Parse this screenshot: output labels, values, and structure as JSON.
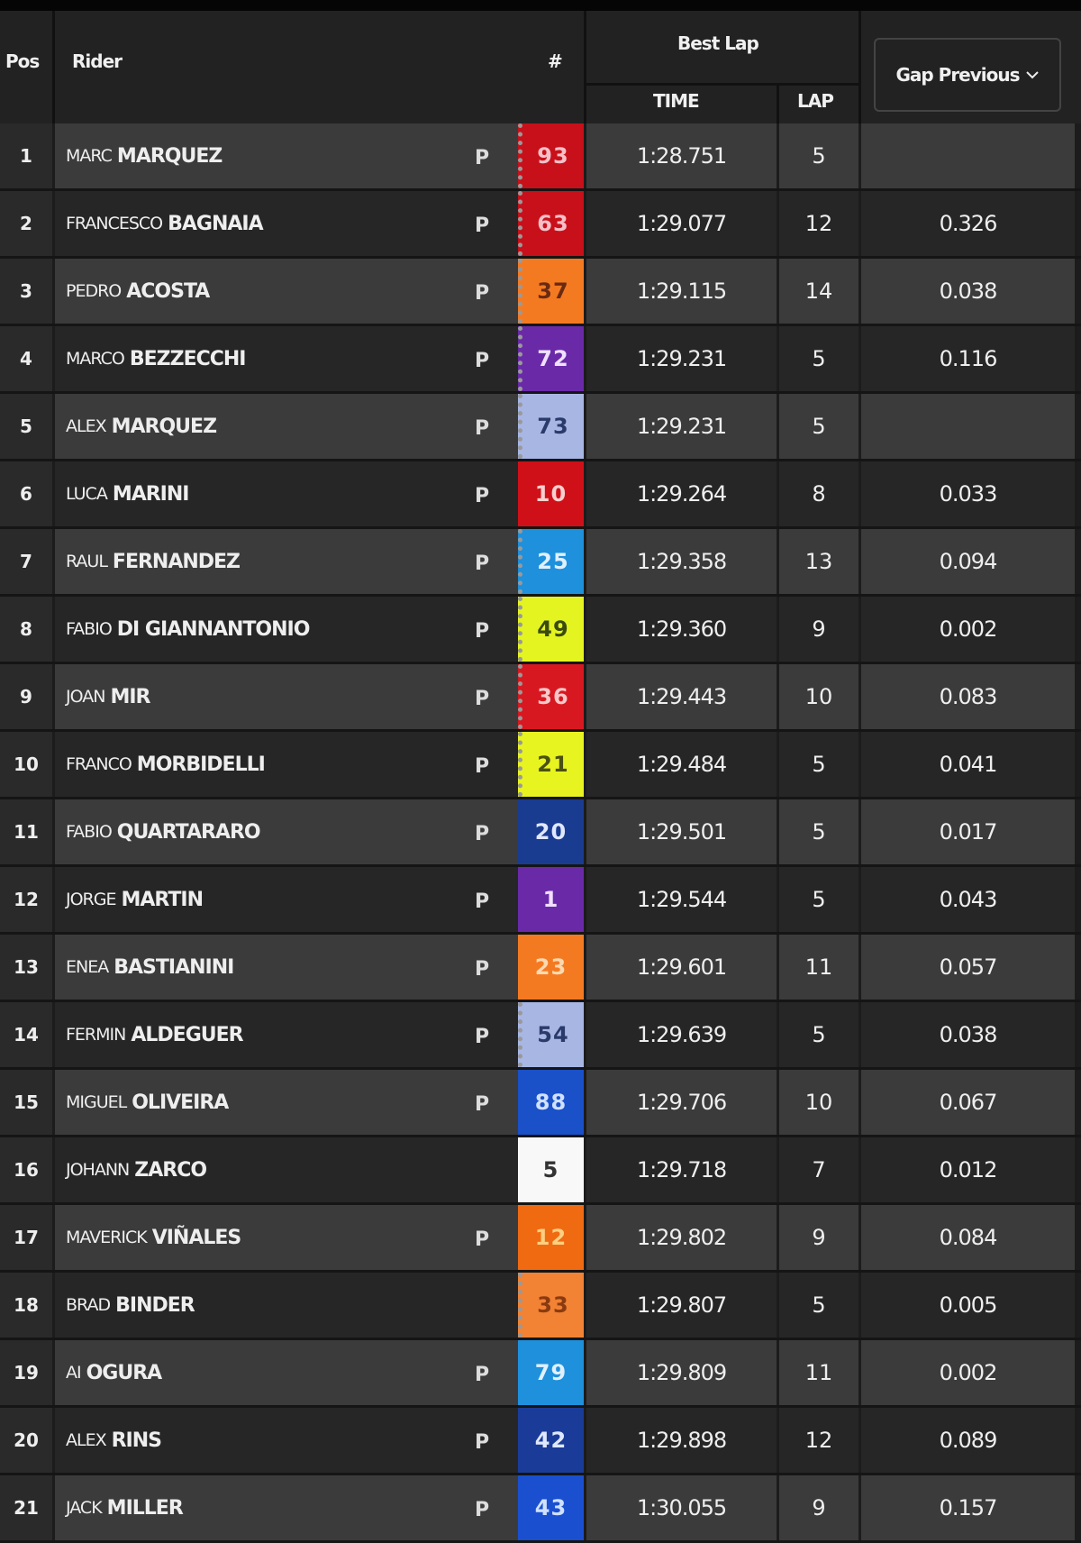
{
  "header": {
    "pos": "Pos",
    "rider": "Rider",
    "number": "#",
    "best_lap": "Best Lap",
    "time": "TIME",
    "lap": "LAP",
    "gap_dropdown": "Gap Previous",
    "gap_icon": "chevron-down-icon"
  },
  "rows": [
    {
      "pos": "1",
      "first": "MARC",
      "last": "MARQUEZ",
      "p": true,
      "num": "93",
      "color": "#c8101a",
      "text": "#f4c0c8",
      "chk": true,
      "time": "1:28.751",
      "lap": "5",
      "gap": ""
    },
    {
      "pos": "2",
      "first": "FRANCESCO",
      "last": "BAGNAIA",
      "p": true,
      "num": "63",
      "color": "#c8101a",
      "text": "#f4c0c8",
      "chk": true,
      "time": "1:29.077",
      "lap": "12",
      "gap": "0.326"
    },
    {
      "pos": "3",
      "first": "PEDRO",
      "last": "ACOSTA",
      "p": true,
      "num": "37",
      "color": "#f47a22",
      "text": "#6a2a10",
      "chk": true,
      "time": "1:29.115",
      "lap": "14",
      "gap": "0.038"
    },
    {
      "pos": "4",
      "first": "MARCO",
      "last": "BEZZECCHI",
      "p": true,
      "num": "72",
      "color": "#6a2aa8",
      "text": "#f0e0ff",
      "chk": true,
      "time": "1:29.231",
      "lap": "5",
      "gap": "0.116"
    },
    {
      "pos": "5",
      "first": "ALEX",
      "last": "MARQUEZ",
      "p": true,
      "num": "73",
      "color": "#a8b6e4",
      "text": "#2a3a6a",
      "chk": true,
      "time": "1:29.231",
      "lap": "5",
      "gap": ""
    },
    {
      "pos": "6",
      "first": "LUCA",
      "last": "MARINI",
      "p": true,
      "num": "10",
      "color": "#d01018",
      "text": "#f8d0d0",
      "chk": false,
      "time": "1:29.264",
      "lap": "8",
      "gap": "0.033"
    },
    {
      "pos": "7",
      "first": "RAUL",
      "last": "FERNANDEZ",
      "p": true,
      "num": "25",
      "color": "#1e90dc",
      "text": "#e0f0ff",
      "chk": true,
      "time": "1:29.358",
      "lap": "13",
      "gap": "0.094"
    },
    {
      "pos": "8",
      "first": "FABIO",
      "last": "DI GIANNANTONIO",
      "p": true,
      "num": "49",
      "color": "#e4f420",
      "text": "#3a4a10",
      "chk": true,
      "time": "1:29.360",
      "lap": "9",
      "gap": "0.002"
    },
    {
      "pos": "9",
      "first": "JOAN",
      "last": "MIR",
      "p": true,
      "num": "36",
      "color": "#d81820",
      "text": "#f8c8c8",
      "chk": true,
      "time": "1:29.443",
      "lap": "10",
      "gap": "0.083"
    },
    {
      "pos": "10",
      "first": "FRANCO",
      "last": "MORBIDELLI",
      "p": true,
      "num": "21",
      "color": "#e8f420",
      "text": "#4a5010",
      "chk": true,
      "time": "1:29.484",
      "lap": "5",
      "gap": "0.041"
    },
    {
      "pos": "11",
      "first": "FABIO",
      "last": "QUARTARARO",
      "p": true,
      "num": "20",
      "color": "#1a3c90",
      "text": "#e0e8ff",
      "chk": false,
      "time": "1:29.501",
      "lap": "5",
      "gap": "0.017"
    },
    {
      "pos": "12",
      "first": "JORGE",
      "last": "MARTIN",
      "p": true,
      "num": "1",
      "color": "#6a2aa8",
      "text": "#f0e0ff",
      "chk": false,
      "time": "1:29.544",
      "lap": "5",
      "gap": "0.043"
    },
    {
      "pos": "13",
      "first": "ENEA",
      "last": "BASTIANINI",
      "p": true,
      "num": "23",
      "color": "#f47a22",
      "text": "#fcd8b0",
      "chk": false,
      "time": "1:29.601",
      "lap": "11",
      "gap": "0.057"
    },
    {
      "pos": "14",
      "first": "FERMIN",
      "last": "ALDEGUER",
      "p": true,
      "num": "54",
      "color": "#a8b6e4",
      "text": "#2a3a6a",
      "chk": true,
      "time": "1:29.639",
      "lap": "5",
      "gap": "0.038"
    },
    {
      "pos": "15",
      "first": "MIGUEL",
      "last": "OLIVEIRA",
      "p": true,
      "num": "88",
      "color": "#1a50c8",
      "text": "#d0e0ff",
      "chk": false,
      "time": "1:29.706",
      "lap": "10",
      "gap": "0.067"
    },
    {
      "pos": "16",
      "first": "JOHANN",
      "last": "ZARCO",
      "p": false,
      "num": "5",
      "color": "#f8f8f8",
      "text": "#333333",
      "chk": false,
      "time": "1:29.718",
      "lap": "7",
      "gap": "0.012"
    },
    {
      "pos": "17",
      "first": "MAVERICK",
      "last": "VIÑALES",
      "p": true,
      "num": "12",
      "color": "#f06a12",
      "text": "#fcd080",
      "chk": false,
      "time": "1:29.802",
      "lap": "9",
      "gap": "0.084"
    },
    {
      "pos": "18",
      "first": "BRAD",
      "last": "BINDER",
      "p": false,
      "num": "33",
      "color": "#f28234",
      "text": "#8a3a10",
      "chk": true,
      "time": "1:29.807",
      "lap": "5",
      "gap": "0.005"
    },
    {
      "pos": "19",
      "first": "AI",
      "last": "OGURA",
      "p": true,
      "num": "79",
      "color": "#1e90dc",
      "text": "#e0f0ff",
      "chk": false,
      "time": "1:29.809",
      "lap": "11",
      "gap": "0.002"
    },
    {
      "pos": "20",
      "first": "ALEX",
      "last": "RINS",
      "p": true,
      "num": "42",
      "color": "#1a3c98",
      "text": "#e0e8ff",
      "chk": false,
      "time": "1:29.898",
      "lap": "12",
      "gap": "0.089"
    },
    {
      "pos": "21",
      "first": "JACK",
      "last": "MILLER",
      "p": true,
      "num": "43",
      "color": "#1a50d0",
      "text": "#d0e0ff",
      "chk": false,
      "time": "1:30.055",
      "lap": "9",
      "gap": "0.157"
    }
  ]
}
